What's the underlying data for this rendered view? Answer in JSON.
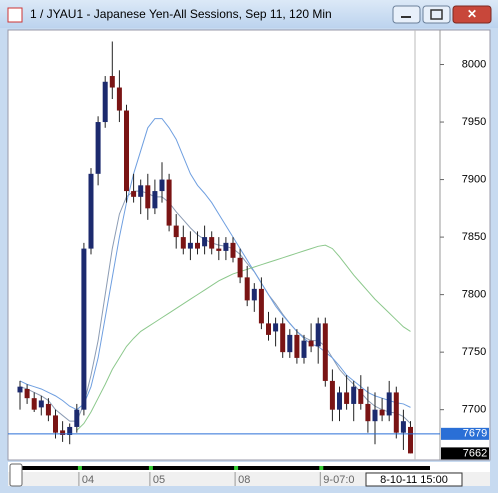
{
  "chart_data": {
    "type": "candlestick",
    "title": "1 / JYAU1 - Japanese Yen-All Sessions, Sep 11, 120 Min",
    "open": [
      7715,
      7718,
      7710,
      7702,
      7705,
      7695,
      7682,
      7678,
      7685,
      7700,
      7840,
      7905,
      7950,
      7990,
      7980,
      7960,
      7890,
      7885,
      7895,
      7875,
      7890,
      7900,
      7860,
      7850,
      7840,
      7845,
      7842,
      7850,
      7840,
      7838,
      7845,
      7832,
      7815,
      7795,
      7805,
      7775,
      7768,
      7775,
      7750,
      7765,
      7745,
      7760,
      7755,
      7775,
      7725,
      7700,
      7715,
      7705,
      7718,
      7705,
      7690,
      7700,
      7695,
      7715,
      7680,
      7685
    ],
    "high": [
      7725,
      7722,
      7715,
      7712,
      7710,
      7700,
      7690,
      7688,
      7705,
      7845,
      7910,
      7955,
      7990,
      8020,
      7995,
      7965,
      7905,
      7900,
      7905,
      7900,
      7915,
      7905,
      7870,
      7860,
      7855,
      7855,
      7860,
      7855,
      7850,
      7850,
      7850,
      7840,
      7825,
      7810,
      7815,
      7785,
      7780,
      7780,
      7770,
      7770,
      7765,
      7775,
      7780,
      7780,
      7735,
      7720,
      7730,
      7725,
      7730,
      7720,
      7715,
      7710,
      7725,
      7720,
      7700,
      7690
    ],
    "low": [
      7700,
      7705,
      7698,
      7695,
      7690,
      7675,
      7672,
      7670,
      7680,
      7695,
      7835,
      7895,
      7945,
      7970,
      7950,
      7880,
      7880,
      7870,
      7865,
      7870,
      7880,
      7855,
      7840,
      7835,
      7830,
      7835,
      7835,
      7835,
      7830,
      7830,
      7828,
      7810,
      7790,
      7785,
      7770,
      7760,
      7755,
      7745,
      7745,
      7740,
      7740,
      7750,
      7740,
      7720,
      7690,
      7690,
      7700,
      7690,
      7700,
      7680,
      7670,
      7690,
      7690,
      7675,
      7665,
      7662
    ],
    "close": [
      7720,
      7710,
      7700,
      7708,
      7695,
      7680,
      7678,
      7685,
      7700,
      7840,
      7905,
      7950,
      7985,
      7980,
      7960,
      7890,
      7885,
      7895,
      7875,
      7890,
      7900,
      7860,
      7850,
      7840,
      7845,
      7840,
      7850,
      7840,
      7838,
      7845,
      7832,
      7815,
      7795,
      7805,
      7775,
      7765,
      7775,
      7750,
      7765,
      7745,
      7760,
      7755,
      7775,
      7725,
      7700,
      7715,
      7705,
      7720,
      7705,
      7690,
      7700,
      7695,
      7715,
      7680,
      7690,
      7662
    ],
    "up_color": "#1c2a6e",
    "down_color": "#7a1414",
    "lines": [
      {
        "color": "#8c9cb4",
        "values": [
          7720,
          7718,
          7715,
          7712,
          7708,
          7700,
          7695,
          7690,
          7690,
          7705,
          7730,
          7760,
          7800,
          7840,
          7870,
          7885,
          7890,
          7890,
          7888,
          7885,
          7885,
          7880,
          7872,
          7865,
          7858,
          7852,
          7848,
          7845,
          7843,
          7842,
          7840,
          7835,
          7827,
          7820,
          7810,
          7800,
          7792,
          7783,
          7775,
          7768,
          7763,
          7760,
          7760,
          7755,
          7745,
          7735,
          7728,
          7722,
          7715,
          7708,
          7703,
          7700,
          7698,
          7697,
          7694,
          7688
        ]
      },
      {
        "color": "#6f9fe0",
        "values": [
          7725,
          7722,
          7720,
          7718,
          7715,
          7712,
          7708,
          7703,
          7700,
          7705,
          7720,
          7745,
          7780,
          7815,
          7850,
          7880,
          7905,
          7925,
          7945,
          7953,
          7953,
          7945,
          7935,
          7920,
          7905,
          7895,
          7888,
          7880,
          7870,
          7860,
          7850,
          7840,
          7830,
          7820,
          7810,
          7800,
          7790,
          7782,
          7775,
          7768,
          7762,
          7757,
          7755,
          7750,
          7745,
          7738,
          7730,
          7725,
          7720,
          7715,
          7712,
          7710,
          7708,
          7706,
          7705,
          7702
        ]
      },
      {
        "color": "#8cc88c",
        "values": [
          null,
          null,
          null,
          null,
          null,
          null,
          null,
          null,
          7682,
          7688,
          7698,
          7710,
          7722,
          7735,
          7745,
          7755,
          7762,
          7768,
          7772,
          7776,
          7780,
          7784,
          7788,
          7792,
          7796,
          7800,
          7804,
          7808,
          7812,
          7815,
          7818,
          7820,
          7822,
          7824,
          7826,
          7828,
          7830,
          7832,
          7834,
          7836,
          7838,
          7840,
          7842,
          7843,
          7840,
          7833,
          7825,
          7817,
          7810,
          7803,
          7796,
          7790,
          7784,
          7778,
          7772,
          7768
        ]
      }
    ],
    "ylim": [
      7658,
      8030
    ],
    "yticks": [
      7700,
      7750,
      7800,
      7850,
      7900,
      7950,
      8000
    ],
    "xticks": [
      {
        "value": 9,
        "label": "04"
      },
      {
        "value": 19,
        "label": "05"
      },
      {
        "value": 31,
        "label": "08"
      },
      {
        "value": 43,
        "label": "9-07:0"
      }
    ],
    "hline_value": 7679,
    "hline_color": "#2a6fd6",
    "last_value": 7662,
    "cursor_label": "8-10-11  15:00"
  }
}
